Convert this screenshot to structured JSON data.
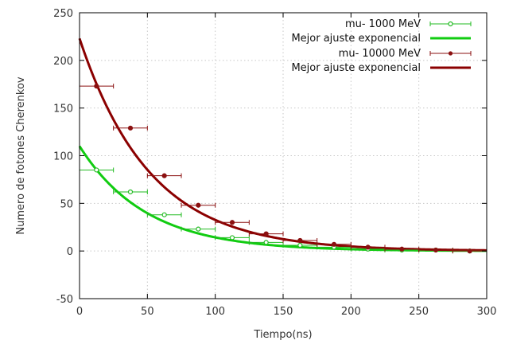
{
  "chart_data": {
    "type": "scatter",
    "title": "",
    "xlabel": "Tiempo(ns)",
    "ylabel": "Numero de fotones Cherenkov",
    "xlim": [
      0,
      300
    ],
    "ylim": [
      -50,
      250
    ],
    "xticks": [
      0,
      50,
      100,
      150,
      200,
      250,
      300
    ],
    "yticks": [
      -50,
      0,
      50,
      100,
      150,
      200,
      250
    ],
    "grid": true,
    "legend_position": "top-right",
    "x_error_half_width": 12.5,
    "series": [
      {
        "name": "mu- 1000 MeV",
        "kind": "points",
        "color": "#22bb22",
        "marker": "open-circle",
        "x": [
          12.5,
          37.5,
          62.5,
          87.5,
          112.5,
          137.5,
          162.5,
          187.5,
          212.5,
          237.5,
          262.5,
          287.5
        ],
        "y": [
          85,
          62,
          38,
          23,
          14,
          9,
          6,
          4,
          2,
          1,
          1,
          0
        ]
      },
      {
        "name": "Mejor ajuste exponencial",
        "kind": "fit",
        "color": "#11cc11",
        "amplitude": 110,
        "tau": 49
      },
      {
        "name": "mu- 10000 MeV",
        "kind": "points",
        "color": "#8b1010",
        "marker": "filled-circle",
        "x": [
          12.5,
          37.5,
          62.5,
          87.5,
          112.5,
          137.5,
          162.5,
          187.5,
          212.5,
          237.5,
          262.5,
          287.5
        ],
        "y": [
          173,
          129,
          79,
          48,
          30,
          18,
          11,
          7,
          4,
          2,
          1,
          0
        ]
      },
      {
        "name": "Mejor ajuste exponencial",
        "kind": "fit",
        "color": "#8b0000",
        "amplitude": 223,
        "tau": 52
      }
    ]
  }
}
